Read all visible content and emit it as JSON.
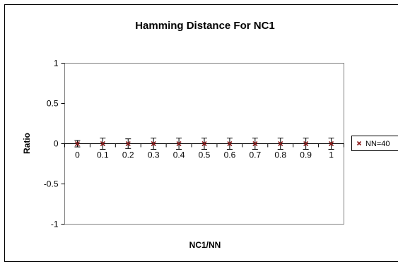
{
  "chart_data": {
    "type": "scatter",
    "title": "Hamming Distance For NC1",
    "xlabel": "NC1/NN",
    "ylabel": "Ratio",
    "categories": [
      "0",
      "0.1",
      "0.2",
      "0.3",
      "0.4",
      "0.5",
      "0.6",
      "0.7",
      "0.8",
      "0.9",
      "1"
    ],
    "series": [
      {
        "name": "NN=40",
        "values": [
          0,
          0,
          0,
          0,
          0,
          0,
          0,
          0,
          0,
          0,
          0
        ],
        "error": [
          0.04,
          0.07,
          0.06,
          0.07,
          0.07,
          0.07,
          0.07,
          0.07,
          0.07,
          0.07,
          0.07
        ],
        "color": "#8b1a1a",
        "marker": "x"
      }
    ],
    "yticks": [
      "1",
      "0.5",
      "0",
      "-0.5",
      "-1"
    ],
    "ylim": [
      -1,
      1
    ],
    "grid": false,
    "legend": "right"
  }
}
